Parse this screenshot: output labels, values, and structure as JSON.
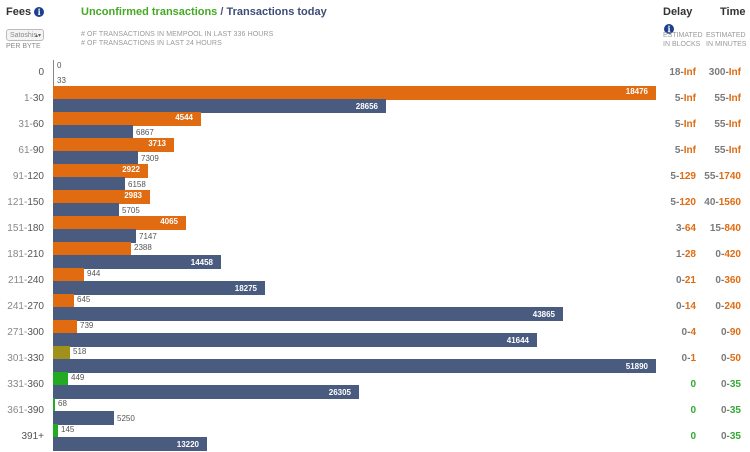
{
  "header": {
    "fees_label": "Fees",
    "info_glyph": "i",
    "title_unconfirmed": "Unconfirmed transactions",
    "title_separator": " / ",
    "title_today": "Transactions today",
    "unit_select_value": "Satoshis",
    "per_byte": "PER BYTE",
    "legend_mempool": "# OF TRANSACTIONS IN MEMPOOL IN LAST 336 HOURS",
    "legend_today": "# OF TRANSACTIONS IN LAST 24 HOURS",
    "delay_label": "Delay",
    "time_label": "Time",
    "delay_sub1": "ESTIMATED",
    "delay_sub2": "IN BLOCKS",
    "time_sub1": "ESTIMATED",
    "time_sub2": "IN MINUTES"
  },
  "colors": {
    "unconfirmed": "#e06b10",
    "today": "#4a5b80",
    "title_green": "#44aa22",
    "olive": "#a0901c",
    "green_bar": "#22aa22"
  },
  "chart_data": {
    "type": "bar",
    "categories": [
      "0",
      "1-30",
      "31-60",
      "61-90",
      "91-120",
      "121-150",
      "151-180",
      "181-210",
      "211-240",
      "241-270",
      "271-300",
      "301-330",
      "331-360",
      "361-390",
      "391+"
    ],
    "series": [
      {
        "name": "Unconfirmed transactions",
        "values": [
          0,
          18476,
          4544,
          3713,
          2922,
          2983,
          4065,
          2388,
          944,
          645,
          739,
          518,
          449,
          68,
          145
        ]
      },
      {
        "name": "Transactions today",
        "values": [
          33,
          28656,
          6867,
          7309,
          6158,
          5705,
          7147,
          14458,
          18275,
          43865,
          41644,
          51890,
          26305,
          5250,
          13220
        ]
      }
    ]
  },
  "rows": [
    {
      "lo": "",
      "hi": "0",
      "unconf": "0",
      "today": "33",
      "delay_lo": "18-",
      "delay_hi": "Inf",
      "time_lo": "300-",
      "time_hi": "Inf"
    },
    {
      "lo": "1-",
      "hi": "30",
      "unconf": "18476",
      "today": "28656",
      "delay_lo": "5-",
      "delay_hi": "Inf",
      "time_lo": "55-",
      "time_hi": "Inf"
    },
    {
      "lo": "31-",
      "hi": "60",
      "unconf": "4544",
      "today": "6867",
      "delay_lo": "5-",
      "delay_hi": "Inf",
      "time_lo": "55-",
      "time_hi": "Inf"
    },
    {
      "lo": "61-",
      "hi": "90",
      "unconf": "3713",
      "today": "7309",
      "delay_lo": "5-",
      "delay_hi": "Inf",
      "time_lo": "55-",
      "time_hi": "Inf"
    },
    {
      "lo": "91-",
      "hi": "120",
      "unconf": "2922",
      "today": "6158",
      "delay_lo": "5-",
      "delay_hi": "129",
      "time_lo": "55-",
      "time_hi": "1740"
    },
    {
      "lo": "121-",
      "hi": "150",
      "unconf": "2983",
      "today": "5705",
      "delay_lo": "5-",
      "delay_hi": "120",
      "time_lo": "40-",
      "time_hi": "1560"
    },
    {
      "lo": "151-",
      "hi": "180",
      "unconf": "4065",
      "today": "7147",
      "delay_lo": "3-",
      "delay_hi": "64",
      "time_lo": "15-",
      "time_hi": "840"
    },
    {
      "lo": "181-",
      "hi": "210",
      "unconf": "2388",
      "today": "14458",
      "delay_lo": "1-",
      "delay_hi": "28",
      "time_lo": "0-",
      "time_hi": "420"
    },
    {
      "lo": "211-",
      "hi": "240",
      "unconf": "944",
      "today": "18275",
      "delay_lo": "0-",
      "delay_hi": "21",
      "time_lo": "0-",
      "time_hi": "360"
    },
    {
      "lo": "241-",
      "hi": "270",
      "unconf": "645",
      "today": "43865",
      "delay_lo": "0-",
      "delay_hi": "14",
      "time_lo": "0-",
      "time_hi": "240"
    },
    {
      "lo": "271-",
      "hi": "300",
      "unconf": "739",
      "today": "41644",
      "delay_lo": "0-",
      "delay_hi": "4",
      "time_lo": "0-",
      "time_hi": "90"
    },
    {
      "lo": "301-",
      "hi": "330",
      "unconf": "518",
      "today": "51890",
      "delay_lo": "0-",
      "delay_hi": "1",
      "time_lo": "0-",
      "time_hi": "50"
    },
    {
      "lo": "331-",
      "hi": "360",
      "unconf": "449",
      "today": "26305",
      "delay_lo": "",
      "delay_hi": "0",
      "time_lo": "0-",
      "time_hi": "35"
    },
    {
      "lo": "361-",
      "hi": "390",
      "unconf": "68",
      "today": "5250",
      "delay_lo": "",
      "delay_hi": "0",
      "time_lo": "0-",
      "time_hi": "35"
    },
    {
      "lo": "",
      "hi": "391+",
      "unconf": "145",
      "today": "13220",
      "delay_lo": "",
      "delay_hi": "0",
      "time_lo": "0-",
      "time_hi": "35"
    }
  ]
}
